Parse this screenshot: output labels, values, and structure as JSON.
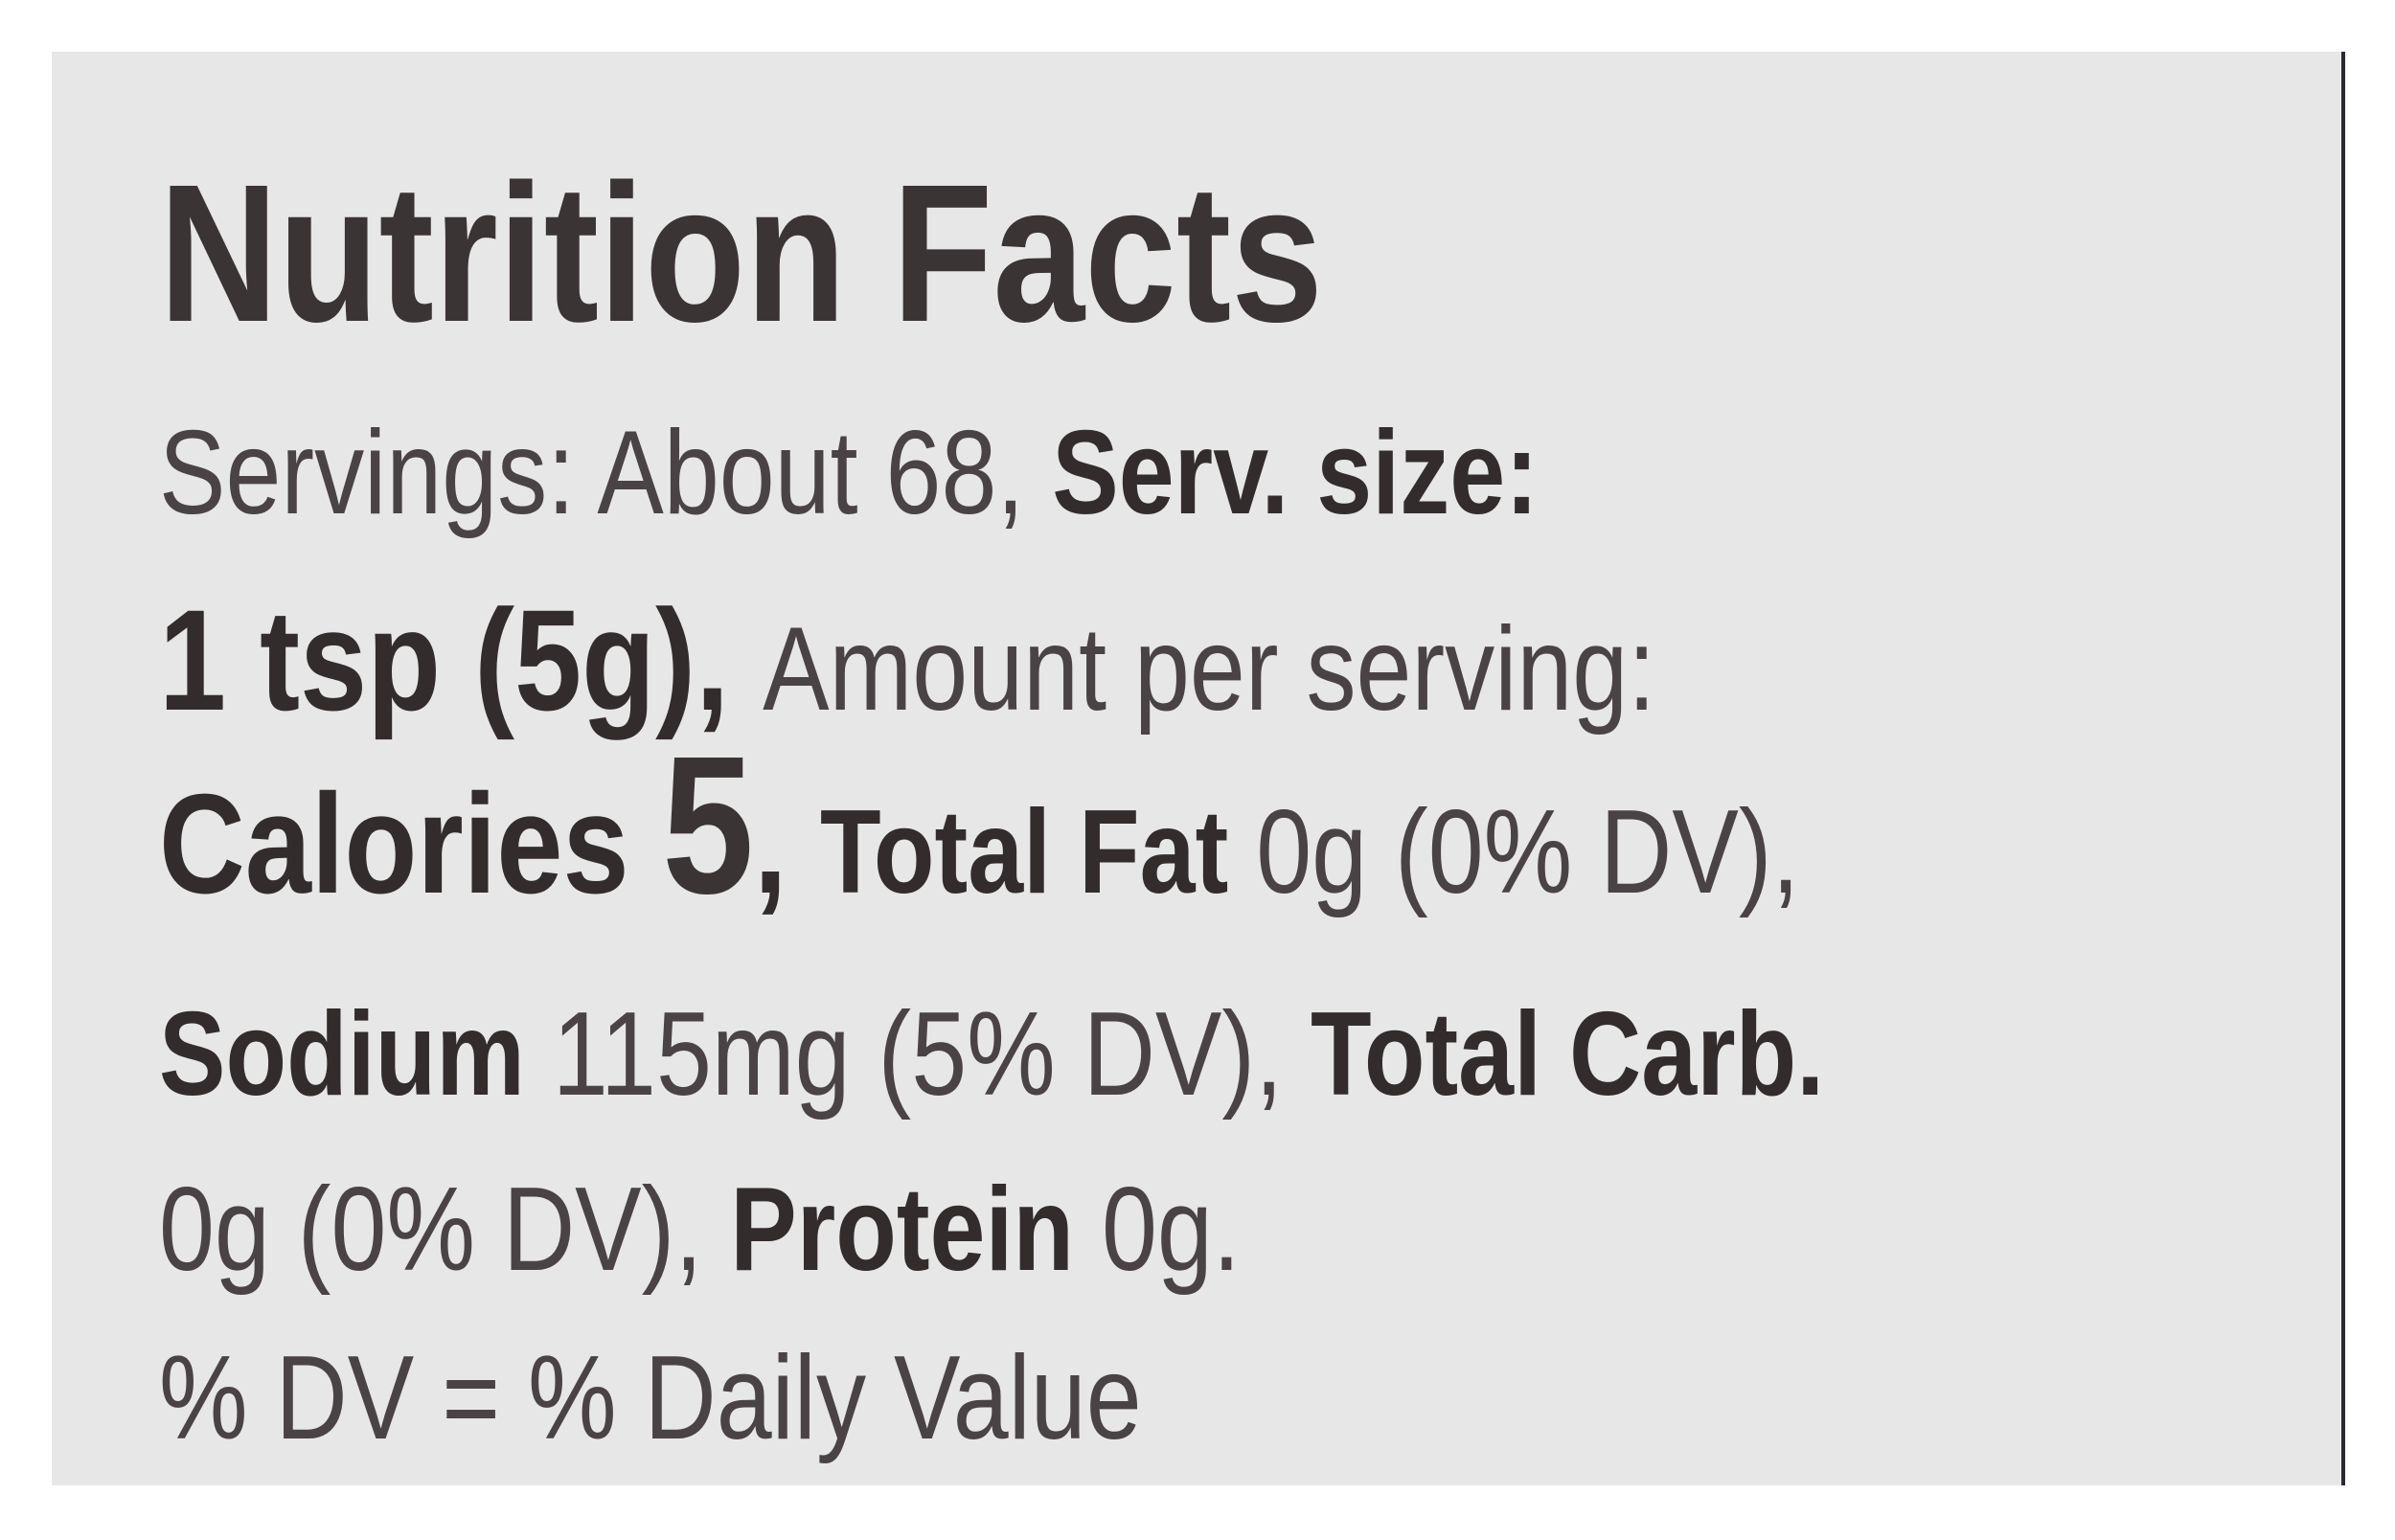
{
  "title": "Nutrition Facts",
  "servings_label": "Servings: About 68, ",
  "serving_size_label": "Serv. size:",
  "serving_size_value": "1 tsp (5g), ",
  "amount_per_serving": "Amount per serving:",
  "calories_label": "Calories ",
  "calories_value": "5",
  "calories_sep": ", ",
  "total_fat_label": "Total Fat ",
  "total_fat_value": "0g (0% DV),",
  "sodium_label": "Sodium ",
  "sodium_value": "115mg (5% DV), ",
  "total_carb_label": "Total Carb.",
  "total_carb_value": "0g (0% DV), ",
  "protein_label": "Protein ",
  "protein_value": "0g.",
  "footnote": "% DV = % Daily Value",
  "colors": {
    "label_background": "#e7e7e7",
    "text": "#3b3435"
  }
}
